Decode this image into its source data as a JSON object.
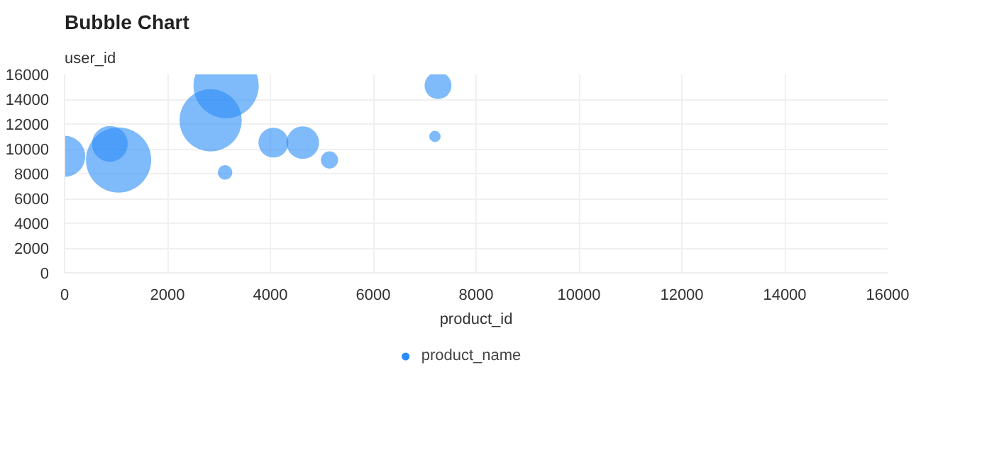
{
  "chart_data": {
    "type": "bubble",
    "title": "Bubble Chart",
    "xlabel": "product_id",
    "ylabel": "user_id",
    "x": [
      0,
      880,
      1050,
      2840,
      3140,
      3120,
      4060,
      4630,
      5150,
      7260,
      7200
    ],
    "series": [
      {
        "name": "product_name",
        "color": "#2a8cf7",
        "values": [
          9400,
          10400,
          9100,
          12300,
          15100,
          8100,
          10500,
          10500,
          9100,
          15100,
          11000
        ],
        "sizes": [
          0.4,
          0.3,
          1,
          0.91,
          1,
          0.05,
          0.21,
          0.25,
          0.07,
          0.17,
          0.03
        ]
      }
    ],
    "xlim": [
      0,
      16000
    ],
    "xticks": [
      0,
      2000,
      4000,
      6000,
      8000,
      10000,
      12000,
      14000,
      16000
    ],
    "ylim": [
      0,
      16000
    ],
    "yticks": [
      0,
      2000,
      4000,
      6000,
      8000,
      10000,
      12000,
      14000,
      16000
    ],
    "grid": true,
    "legend": "bottom"
  }
}
